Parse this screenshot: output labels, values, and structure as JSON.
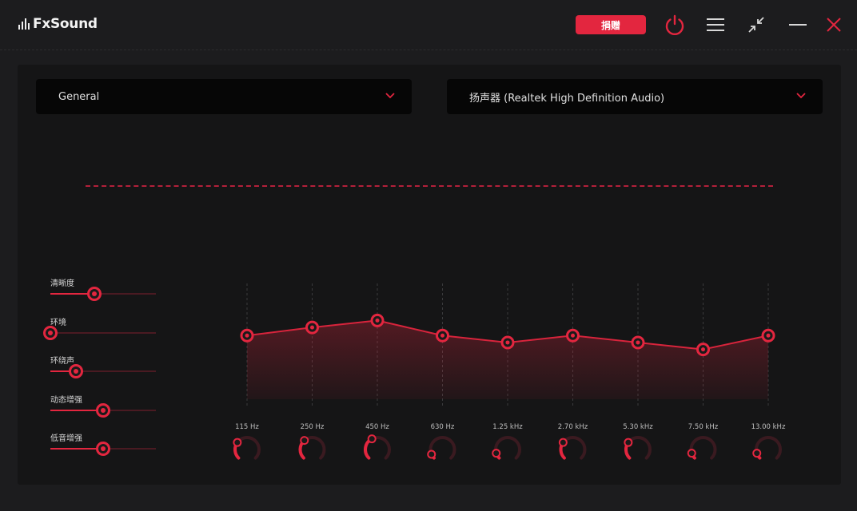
{
  "app": {
    "name": "FxSound",
    "donate_label": "捐赠"
  },
  "icons": {
    "logo": "equalizer-bars-icon",
    "power": "power-icon",
    "menu": "hamburger-menu-icon",
    "minimize_view": "compact-view-icon",
    "window_minimize": "minimize-icon",
    "close": "close-icon"
  },
  "colors": {
    "accent": "#e3263f",
    "background": "#1c1c1e",
    "panel": "#151516"
  },
  "preset": {
    "selected": "General"
  },
  "output_device": {
    "selected": "扬声器 (Realtek High Definition Audio)"
  },
  "effects": [
    {
      "label": "清晰度",
      "value": 0.4
    },
    {
      "label": "环境",
      "value": 0.0
    },
    {
      "label": "环绕声",
      "value": 0.2
    },
    {
      "label": "动态增强",
      "value": 0.5
    },
    {
      "label": "低音增强",
      "value": 0.5
    }
  ],
  "eq_bands": [
    {
      "label": "115 Hz",
      "level": 0.55,
      "knob": 0.3
    },
    {
      "label": "250 Hz",
      "level": 0.62,
      "knob": 0.35
    },
    {
      "label": "450 Hz",
      "level": 0.68,
      "knob": 0.4
    },
    {
      "label": "630 Hz",
      "level": 0.55,
      "knob": 0.08
    },
    {
      "label": "1.25 kHz",
      "level": 0.49,
      "knob": 0.1
    },
    {
      "label": "2.70 kHz",
      "level": 0.55,
      "knob": 0.3
    },
    {
      "label": "5.30 kHz",
      "level": 0.49,
      "knob": 0.3
    },
    {
      "label": "7.50 kHz",
      "level": 0.43,
      "knob": 0.1
    },
    {
      "label": "13.00 kHz",
      "level": 0.55,
      "knob": 0.1
    }
  ]
}
